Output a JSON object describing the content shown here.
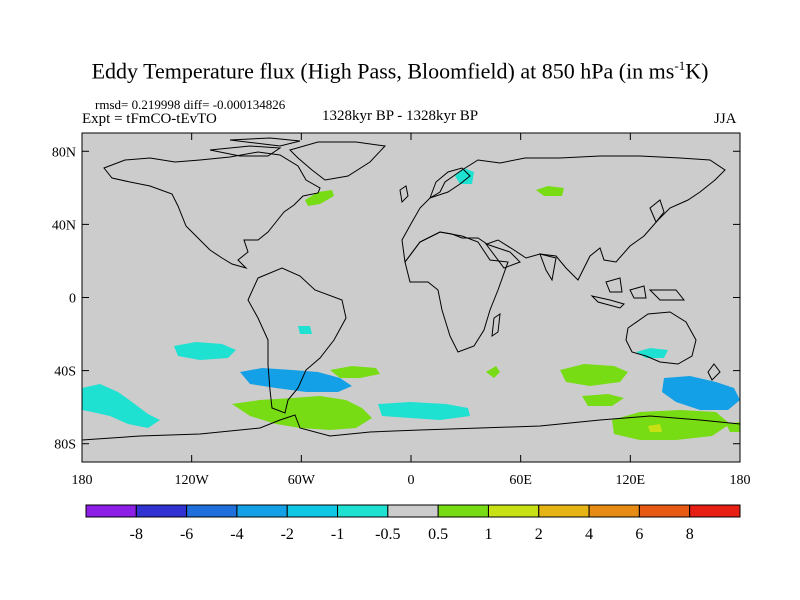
{
  "title": {
    "main": "Eddy Temperature flux (High Pass, Bloomfield) at 850 hPa (in ms",
    "superscript": "-1",
    "suffix": "K)"
  },
  "stats": "rmsd= 0.219998 diff= -0.000134826",
  "experiment": "Expt = tFmCO-tEvTO",
  "period": "1328kyr BP - 1328kyr BP",
  "season": "JJA",
  "map": {
    "projection": "cylindrical-equidistant",
    "lon_range": [
      -180,
      180
    ],
    "lat_range": [
      -90,
      90
    ],
    "background_color": "#cccccc",
    "y_ticks": [
      {
        "lat": 80,
        "label": "80N"
      },
      {
        "lat": 40,
        "label": "40N"
      },
      {
        "lat": 0,
        "label": "0"
      },
      {
        "lat": -40,
        "label": "40S"
      },
      {
        "lat": -80,
        "label": "80S"
      }
    ],
    "x_ticks": [
      {
        "lon": -180,
        "label": "180"
      },
      {
        "lon": -120,
        "label": "120W"
      },
      {
        "lon": -60,
        "label": "60W"
      },
      {
        "lon": 0,
        "label": "0"
      },
      {
        "lon": 60,
        "label": "60E"
      },
      {
        "lon": 120,
        "label": "120E"
      },
      {
        "lon": 180,
        "label": "180"
      }
    ]
  },
  "colorbar": {
    "colors": [
      "#8c1ee6",
      "#3232d2",
      "#1e6edc",
      "#14a0e6",
      "#0fc8e6",
      "#1ee1d2",
      "#cccccc",
      "#78dc14",
      "#c8e114",
      "#e6b414",
      "#e68c14",
      "#e65a14",
      "#e61e14"
    ],
    "labels": [
      "-8",
      "-6",
      "-4",
      "-2",
      "-1",
      "-0.5",
      "0.5",
      "1",
      "2",
      "4",
      "6",
      "8"
    ]
  },
  "anomalies": [
    {
      "name": "anomaly-n-atlantic",
      "color": "#78dc14"
    },
    {
      "name": "anomaly-scandinavia",
      "color": "#1ee1d2"
    },
    {
      "name": "anomaly-central-asia",
      "color": "#78dc14"
    },
    {
      "name": "anomaly-s-pacific-east",
      "color": "#1ee1d2"
    },
    {
      "name": "anomaly-s-pacific-west",
      "color": "#1ee1d2"
    },
    {
      "name": "anomaly-peru",
      "color": "#1ee1d2"
    },
    {
      "name": "anomaly-s-atlantic",
      "color": "#14a0e6"
    },
    {
      "name": "anomaly-s-atlantic-green",
      "color": "#78dc14"
    },
    {
      "name": "anomaly-drake-passage",
      "color": "#78dc14"
    },
    {
      "name": "anomaly-s-ocean-atlantic",
      "color": "#1ee1d2"
    },
    {
      "name": "anomaly-indian-ocean-south",
      "color": "#78dc14"
    },
    {
      "name": "anomaly-australia",
      "color": "#1ee1d2"
    },
    {
      "name": "anomaly-tasman",
      "color": "#14a0e6"
    },
    {
      "name": "anomaly-antarctic-coast",
      "color": "#78dc14"
    },
    {
      "name": "anomaly-antarctic-yellow",
      "color": "#c8e114"
    }
  ]
}
